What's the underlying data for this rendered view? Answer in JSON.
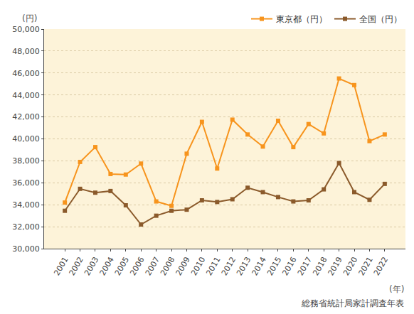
{
  "chart_data": {
    "type": "line",
    "y_label": "(円)",
    "x_label": "(年)",
    "annotations": [
      "総務省統計局家計調査年表"
    ],
    "categories": [
      "2001",
      "2002",
      "2003",
      "2004",
      "2005",
      "2006",
      "2007",
      "2008",
      "2009",
      "2010",
      "2011",
      "2012",
      "2013",
      "2014",
      "2015",
      "2016",
      "2017",
      "2018",
      "2019",
      "2020",
      "2021",
      "2022"
    ],
    "series": [
      {
        "name": "東京都（円）",
        "color": "#f7941d",
        "marker": "square",
        "values": [
          34200,
          37900,
          39250,
          36800,
          36750,
          37750,
          34300,
          33900,
          38650,
          41550,
          37300,
          41750,
          40400,
          39300,
          41650,
          39250,
          41350,
          40500,
          45500,
          44900,
          39800,
          40400
        ]
      },
      {
        "name": "全国（円）",
        "color": "#8b5a2b",
        "marker": "square",
        "values": [
          33450,
          35450,
          35100,
          35250,
          33950,
          32200,
          33000,
          33450,
          33550,
          34400,
          34250,
          34500,
          35550,
          35150,
          34700,
          34300,
          34400,
          35400,
          37800,
          35150,
          34450,
          35900
        ]
      }
    ],
    "ylim": [
      30000,
      50000
    ],
    "yticks": [
      {
        "value": 30000,
        "label": "30,000"
      },
      {
        "value": 32000,
        "label": "32,000"
      },
      {
        "value": 34000,
        "label": "34,000"
      },
      {
        "value": 36000,
        "label": "36,000"
      },
      {
        "value": 38000,
        "label": "38,000"
      },
      {
        "value": 40000,
        "label": "40,000"
      },
      {
        "value": 42000,
        "label": "42,000"
      },
      {
        "value": 44000,
        "label": "44,000"
      },
      {
        "value": 46000,
        "label": "46,000"
      },
      {
        "value": 48000,
        "label": "48,000"
      },
      {
        "value": 50000,
        "label": "50,000"
      }
    ],
    "grid": true,
    "legend": "top-right"
  }
}
